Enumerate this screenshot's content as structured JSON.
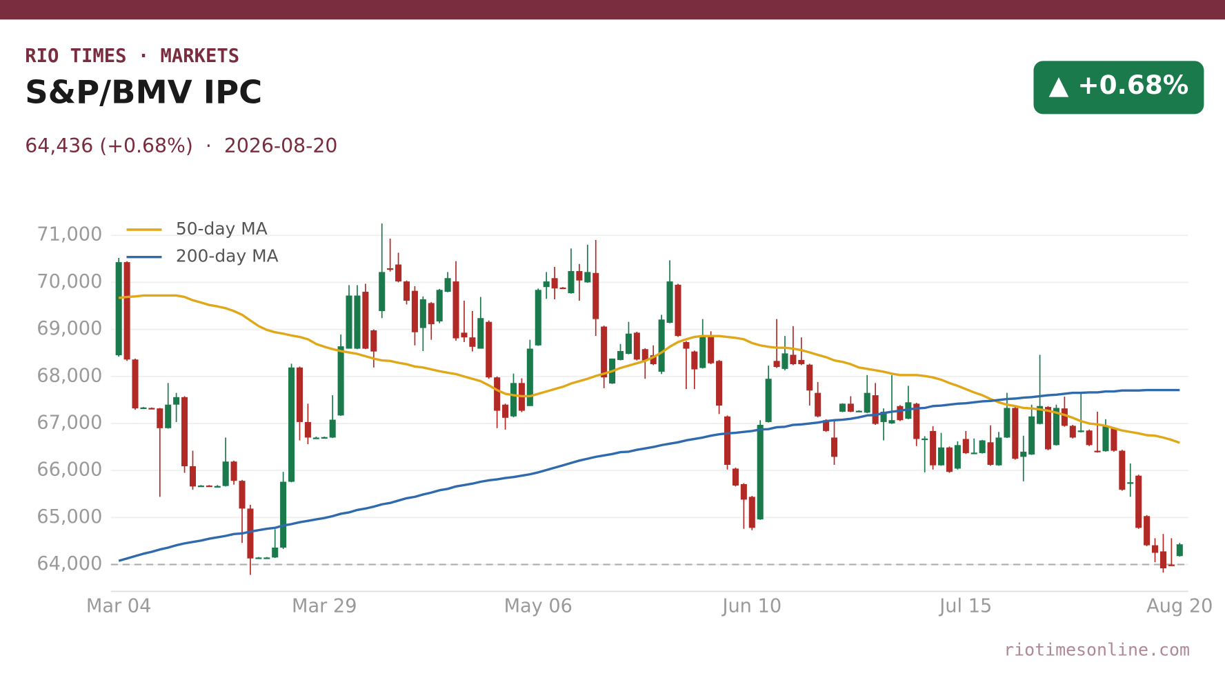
{
  "chart_data": {
    "type": "candlestick",
    "brand": "RIO TIMES · MARKETS",
    "title": "S&P/BMV IPC",
    "subtitle": "64,436 (+0.68%)  ·  2026-08-20",
    "badge": "▲ +0.68%",
    "source": "riotimesonline.com",
    "up_color": "#1a7a4c",
    "down_color": "#b22a25",
    "categories": [
      "Mar 04",
      null,
      null,
      null,
      null,
      null,
      null,
      null,
      null,
      null,
      null,
      null,
      null,
      null,
      null,
      null,
      null,
      null,
      null,
      null,
      null,
      null,
      null,
      null,
      null,
      "Mar 29",
      null,
      null,
      null,
      null,
      null,
      null,
      null,
      null,
      null,
      null,
      null,
      null,
      null,
      null,
      null,
      null,
      null,
      null,
      null,
      null,
      null,
      null,
      null,
      null,
      null,
      "May 06",
      null,
      null,
      null,
      null,
      null,
      null,
      null,
      null,
      null,
      null,
      null,
      null,
      null,
      null,
      null,
      null,
      null,
      null,
      null,
      null,
      null,
      null,
      null,
      null,
      null,
      "Jun 10",
      null,
      null,
      null,
      null,
      null,
      null,
      null,
      null,
      null,
      null,
      null,
      null,
      null,
      null,
      null,
      null,
      null,
      null,
      null,
      null,
      null,
      null,
      null,
      null,
      null,
      "Jul 15",
      null,
      null,
      null,
      null,
      null,
      null,
      null,
      null,
      null,
      null,
      null,
      null,
      null,
      null,
      null,
      null,
      null,
      null,
      null,
      null,
      null,
      null,
      null,
      null,
      null,
      "Aug 20"
    ],
    "open": [
      68450,
      70430,
      68360,
      67330,
      67330,
      67320,
      66900,
      67400,
      67560,
      66090,
      65670,
      65680,
      65670,
      65670,
      66190,
      65780,
      65190,
      64140,
      64150,
      64150,
      64360,
      65760,
      68190,
      67030,
      66700,
      66700,
      66700,
      67170,
      68590,
      68590,
      69800,
      68980,
      69390,
      70300,
      70380,
      70020,
      69820,
      69030,
      69560,
      69170,
      69800,
      70020,
      68930,
      68830,
      68590,
      69160,
      67980,
      67400,
      67150,
      67860,
      67370,
      68660,
      69900,
      70090,
      69890,
      69770,
      70240,
      70000,
      70200,
      69060,
      67850,
      68350,
      68480,
      68930,
      68580,
      68450,
      68100,
      69140,
      69950,
      68730,
      68530,
      68180,
      68860,
      68330,
      67150,
      66040,
      65710,
      65440,
      64960,
      67030,
      68330,
      68160,
      68460,
      68350,
      68250,
      67650,
      67070,
      66700,
      67250,
      67420,
      67270,
      67230,
      67600,
      67030,
      67000,
      67370,
      67100,
      67420,
      66670,
      66840,
      66110,
      66490,
      66040,
      66670,
      66370,
      66370,
      66600,
      66110,
      66700,
      67330,
      66290,
      66340,
      66990,
      67350,
      66540,
      67320,
      66950,
      66820,
      66850,
      66420,
      66410,
      66900,
      66420,
      65740,
      65890,
      65030,
      64410,
      64280,
      64000,
      64180
    ],
    "high": [
      70520,
      70450,
      68380,
      67350,
      67340,
      67330,
      67860,
      67650,
      67580,
      66420,
      65690,
      65690,
      65690,
      66700,
      66210,
      65800,
      65270,
      64160,
      64160,
      64750,
      65970,
      68270,
      68210,
      67420,
      66720,
      66720,
      67600,
      68890,
      69940,
      69940,
      69970,
      69000,
      71250,
      70930,
      70630,
      70040,
      69920,
      69700,
      69580,
      69860,
      70220,
      70450,
      69610,
      69390,
      69690,
      69190,
      68000,
      67420,
      68060,
      67960,
      68780,
      69870,
      70220,
      70330,
      69900,
      70720,
      70390,
      70800,
      70900,
      69080,
      68380,
      68690,
      69160,
      68950,
      68600,
      68660,
      69310,
      70470,
      69970,
      68750,
      68550,
      69220,
      68960,
      68350,
      67170,
      66060,
      65730,
      65460,
      67070,
      68230,
      69220,
      68860,
      69070,
      68830,
      68270,
      67880,
      67090,
      67080,
      67430,
      67580,
      67280,
      68030,
      67860,
      67320,
      68030,
      67390,
      67800,
      67440,
      66730,
      66940,
      66800,
      66510,
      66620,
      66840,
      66680,
      66650,
      66960,
      66820,
      67650,
      67350,
      66740,
      67400,
      68460,
      67370,
      67400,
      67570,
      66970,
      67660,
      66870,
      67250,
      67090,
      66920,
      66440,
      66150,
      65910,
      65050,
      64560,
      64650,
      64560,
      64460
    ],
    "low": [
      68420,
      68330,
      67290,
      67320,
      67310,
      65440,
      66890,
      67030,
      65950,
      65590,
      65660,
      65660,
      65660,
      65660,
      65700,
      64460,
      63780,
      64130,
      64130,
      64140,
      64330,
      65750,
      66640,
      66560,
      66690,
      66690,
      66690,
      67160,
      68590,
      68580,
      68580,
      68190,
      69240,
      70230,
      70000,
      69530,
      68660,
      68540,
      68780,
      69130,
      69790,
      68760,
      68730,
      68530,
      68590,
      67950,
      66900,
      66870,
      67130,
      67240,
      67370,
      68650,
      69650,
      69640,
      69870,
      69760,
      69610,
      69990,
      68860,
      67750,
      67840,
      68340,
      68470,
      68340,
      67950,
      68240,
      68050,
      69130,
      68840,
      67730,
      67730,
      68170,
      68260,
      67200,
      66020,
      65660,
      64760,
      64730,
      64950,
      67020,
      68180,
      68130,
      68240,
      68240,
      67380,
      67130,
      66820,
      66120,
      67240,
      67240,
      67260,
      67220,
      66970,
      66640,
      66990,
      67050,
      67090,
      66520,
      65960,
      66020,
      66100,
      65950,
      66020,
      66350,
      66360,
      66360,
      66100,
      66100,
      66690,
      66230,
      65770,
      66330,
      66980,
      66430,
      66530,
      66930,
      66680,
      66810,
      66520,
      66380,
      66400,
      66400,
      65570,
      65440,
      64760,
      64390,
      64050,
      63830,
      63980,
      64170
    ],
    "close": [
      70430,
      68360,
      67320,
      67340,
      67320,
      66900,
      67400,
      67560,
      66090,
      65660,
      65680,
      65670,
      65670,
      66190,
      65780,
      65190,
      64130,
      64150,
      64150,
      64360,
      65760,
      68190,
      67030,
      66700,
      66700,
      66710,
      67080,
      68640,
      69720,
      69720,
      68590,
      68530,
      70220,
      70290,
      70020,
      69610,
      68940,
      69640,
      69110,
      69840,
      70090,
      68810,
      68830,
      68630,
      69240,
      67980,
      67270,
      67120,
      67860,
      67270,
      68590,
      69840,
      70020,
      69870,
      69880,
      70240,
      70040,
      70220,
      69220,
      67980,
      68380,
      68540,
      68910,
      68360,
      68340,
      68260,
      69210,
      70020,
      68860,
      68590,
      68150,
      68860,
      68280,
      67380,
      66120,
      65680,
      65380,
      64780,
      66970,
      67950,
      68200,
      68490,
      68260,
      68260,
      67700,
      67150,
      66840,
      66290,
      67420,
      67250,
      67270,
      67650,
      66990,
      67250,
      67070,
      67070,
      67450,
      66670,
      66680,
      66110,
      66490,
      65970,
      66540,
      66370,
      66380,
      66640,
      66120,
      66700,
      67330,
      66250,
      66400,
      67150,
      67370,
      66450,
      67330,
      66950,
      66700,
      66850,
      66540,
      66400,
      66950,
      66420,
      65590,
      65750,
      64780,
      64410,
      64250,
      63920,
      63990,
      64430
    ],
    "series": [
      {
        "name": "50-day MA",
        "color": "#e0a818",
        "values": [
          69670,
          69690,
          69700,
          69720,
          69720,
          69720,
          69720,
          69720,
          69690,
          69620,
          69570,
          69520,
          69490,
          69450,
          69390,
          69310,
          69190,
          69070,
          68990,
          68940,
          68910,
          68870,
          68840,
          68790,
          68690,
          68630,
          68580,
          68540,
          68510,
          68480,
          68430,
          68380,
          68340,
          68330,
          68290,
          68260,
          68210,
          68190,
          68150,
          68110,
          68080,
          68050,
          68000,
          67950,
          67900,
          67810,
          67710,
          67630,
          67600,
          67580,
          67580,
          67630,
          67680,
          67730,
          67780,
          67850,
          67900,
          67950,
          68010,
          68060,
          68110,
          68180,
          68230,
          68280,
          68330,
          68410,
          68510,
          68630,
          68730,
          68790,
          68840,
          68860,
          68860,
          68860,
          68840,
          68820,
          68790,
          68710,
          68660,
          68630,
          68610,
          68610,
          68590,
          68560,
          68510,
          68460,
          68410,
          68340,
          68310,
          68260,
          68190,
          68160,
          68130,
          68100,
          68060,
          68030,
          68030,
          68030,
          68010,
          67980,
          67930,
          67860,
          67800,
          67730,
          67660,
          67600,
          67520,
          67450,
          67400,
          67370,
          67330,
          67320,
          67300,
          67270,
          67230,
          67180,
          67120,
          67050,
          67000,
          66980,
          66950,
          66900,
          66850,
          66820,
          66790,
          66750,
          66740,
          66700,
          66650,
          66590
        ]
      },
      {
        "name": "200-day MA",
        "color": "#2f6aad",
        "values": [
          64080,
          64130,
          64180,
          64230,
          64270,
          64320,
          64360,
          64410,
          64450,
          64480,
          64510,
          64550,
          64580,
          64610,
          64650,
          64660,
          64700,
          64730,
          64760,
          64780,
          64830,
          64860,
          64900,
          64930,
          64960,
          64990,
          65030,
          65080,
          65110,
          65160,
          65190,
          65230,
          65280,
          65310,
          65360,
          65410,
          65440,
          65490,
          65530,
          65580,
          65610,
          65660,
          65690,
          65720,
          65760,
          65790,
          65810,
          65840,
          65860,
          65890,
          65920,
          65960,
          66010,
          66060,
          66110,
          66160,
          66210,
          66250,
          66290,
          66320,
          66350,
          66390,
          66400,
          66440,
          66470,
          66500,
          66540,
          66570,
          66600,
          66640,
          66670,
          66700,
          66740,
          66770,
          66790,
          66800,
          66820,
          66840,
          66870,
          66880,
          66920,
          66930,
          66970,
          66980,
          67000,
          67020,
          67050,
          67070,
          67080,
          67100,
          67130,
          67170,
          67180,
          67220,
          67250,
          67270,
          67300,
          67320,
          67330,
          67370,
          67380,
          67400,
          67420,
          67430,
          67450,
          67470,
          67480,
          67500,
          67520,
          67530,
          67550,
          67560,
          67580,
          67600,
          67610,
          67630,
          67650,
          67650,
          67660,
          67660,
          67680,
          67680,
          67700,
          67700,
          67700,
          67710,
          67710,
          67710,
          67710,
          67710
        ]
      }
    ],
    "ylim": [
      63430,
      71270
    ],
    "yticks": [
      {
        "value": 64000,
        "label": "64,000"
      },
      {
        "value": 65000,
        "label": "65,000"
      },
      {
        "value": 66000,
        "label": "66,000"
      },
      {
        "value": 67000,
        "label": "67,000"
      },
      {
        "value": 68000,
        "label": "68,000"
      },
      {
        "value": 69000,
        "label": "69,000"
      },
      {
        "value": 70000,
        "label": "70,000"
      },
      {
        "value": 71000,
        "label": "71,000"
      }
    ],
    "grid": true,
    "reference_line": 64000,
    "legend": "upper left"
  }
}
